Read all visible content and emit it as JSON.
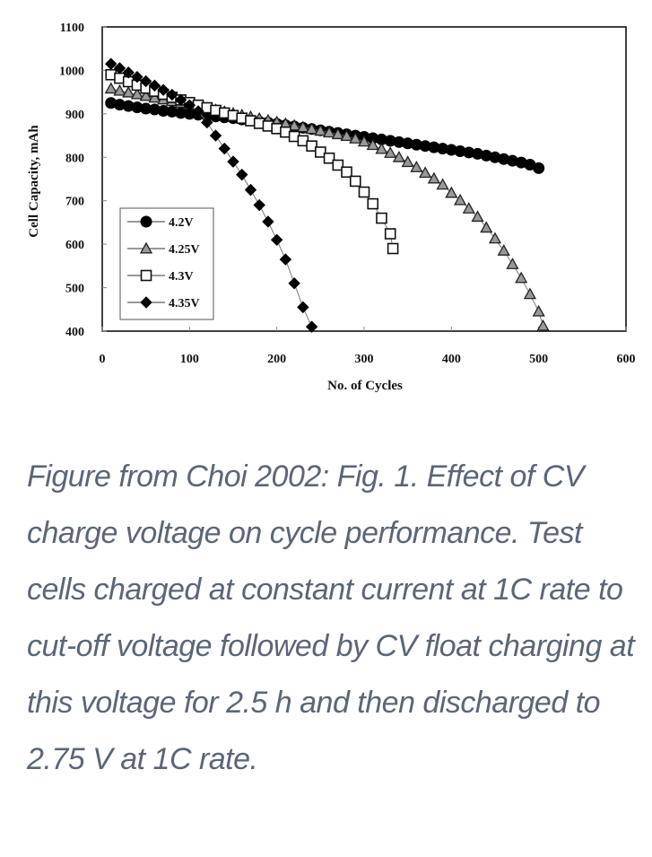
{
  "chart_data": {
    "type": "line",
    "title": "",
    "xlabel": "No. of Cycles",
    "ylabel": "Cell Capacity, mAh",
    "xlim": [
      0,
      600
    ],
    "ylim": [
      400,
      1100
    ],
    "xticks": [
      "0",
      "100",
      "200",
      "300",
      "400",
      "500",
      "600"
    ],
    "yticks": [
      "400",
      "500",
      "600",
      "700",
      "800",
      "900",
      "1000",
      "1100"
    ],
    "grid": false,
    "legend_position": "bottom-left",
    "series": [
      {
        "name": "4.2V",
        "marker": "circle",
        "fill": "#000000",
        "points": [
          [
            10,
            925
          ],
          [
            20,
            921
          ],
          [
            30,
            918
          ],
          [
            40,
            915
          ],
          [
            50,
            912
          ],
          [
            60,
            910
          ],
          [
            70,
            907
          ],
          [
            80,
            905
          ],
          [
            90,
            902
          ],
          [
            100,
            900
          ],
          [
            110,
            898
          ],
          [
            120,
            896
          ],
          [
            130,
            894
          ],
          [
            140,
            892
          ],
          [
            150,
            890
          ],
          [
            160,
            887
          ],
          [
            170,
            885
          ],
          [
            180,
            882
          ],
          [
            190,
            880
          ],
          [
            200,
            877
          ],
          [
            210,
            874
          ],
          [
            220,
            871
          ],
          [
            230,
            868
          ],
          [
            240,
            865
          ],
          [
            250,
            862
          ],
          [
            260,
            859
          ],
          [
            270,
            856
          ],
          [
            280,
            853
          ],
          [
            290,
            850
          ],
          [
            300,
            847
          ],
          [
            310,
            844
          ],
          [
            320,
            841
          ],
          [
            330,
            838
          ],
          [
            340,
            835
          ],
          [
            350,
            832
          ],
          [
            360,
            829
          ],
          [
            370,
            826
          ],
          [
            380,
            823
          ],
          [
            390,
            820
          ],
          [
            400,
            817
          ],
          [
            410,
            814
          ],
          [
            420,
            811
          ],
          [
            430,
            808
          ],
          [
            440,
            804
          ],
          [
            450,
            800
          ],
          [
            460,
            796
          ],
          [
            470,
            792
          ],
          [
            480,
            788
          ],
          [
            490,
            783
          ],
          [
            500,
            775
          ]
        ]
      },
      {
        "name": "4.25V",
        "marker": "triangle",
        "fill": "#999999",
        "points": [
          [
            10,
            958
          ],
          [
            20,
            953
          ],
          [
            30,
            949
          ],
          [
            40,
            945
          ],
          [
            50,
            941
          ],
          [
            60,
            937
          ],
          [
            70,
            933
          ],
          [
            80,
            929
          ],
          [
            90,
            925
          ],
          [
            100,
            921
          ],
          [
            110,
            917
          ],
          [
            120,
            913
          ],
          [
            130,
            909
          ],
          [
            140,
            905
          ],
          [
            150,
            901
          ],
          [
            160,
            897
          ],
          [
            170,
            893
          ],
          [
            180,
            889
          ],
          [
            190,
            885
          ],
          [
            200,
            881
          ],
          [
            210,
            877
          ],
          [
            220,
            873
          ],
          [
            230,
            869
          ],
          [
            240,
            865
          ],
          [
            250,
            861
          ],
          [
            260,
            857
          ],
          [
            270,
            853
          ],
          [
            280,
            849
          ],
          [
            290,
            843
          ],
          [
            300,
            836
          ],
          [
            310,
            828
          ],
          [
            320,
            819
          ],
          [
            330,
            810
          ],
          [
            340,
            800
          ],
          [
            350,
            789
          ],
          [
            360,
            777
          ],
          [
            370,
            764
          ],
          [
            380,
            751
          ],
          [
            390,
            737
          ],
          [
            400,
            718
          ],
          [
            410,
            701
          ],
          [
            420,
            682
          ],
          [
            430,
            663
          ],
          [
            440,
            638
          ],
          [
            450,
            613
          ],
          [
            460,
            585
          ],
          [
            470,
            554
          ],
          [
            480,
            522
          ],
          [
            490,
            485
          ],
          [
            500,
            445
          ],
          [
            505,
            412
          ]
        ]
      },
      {
        "name": "4.3V",
        "marker": "square",
        "fill": "#ffffff",
        "points": [
          [
            10,
            990
          ],
          [
            20,
            982
          ],
          [
            30,
            974
          ],
          [
            40,
            966
          ],
          [
            50,
            959
          ],
          [
            60,
            952
          ],
          [
            70,
            945
          ],
          [
            80,
            938
          ],
          [
            90,
            932
          ],
          [
            100,
            926
          ],
          [
            110,
            920
          ],
          [
            120,
            914
          ],
          [
            130,
            908
          ],
          [
            140,
            902
          ],
          [
            150,
            896
          ],
          [
            160,
            890
          ],
          [
            170,
            884
          ],
          [
            180,
            878
          ],
          [
            190,
            872
          ],
          [
            200,
            866
          ],
          [
            210,
            858
          ],
          [
            220,
            848
          ],
          [
            230,
            838
          ],
          [
            240,
            826
          ],
          [
            250,
            812
          ],
          [
            260,
            798
          ],
          [
            270,
            782
          ],
          [
            280,
            766
          ],
          [
            290,
            745
          ],
          [
            300,
            720
          ],
          [
            310,
            693
          ],
          [
            320,
            660
          ],
          [
            330,
            624
          ],
          [
            333,
            590
          ]
        ]
      },
      {
        "name": "4.35V",
        "marker": "diamond",
        "fill": "#000000",
        "points": [
          [
            10,
            1015
          ],
          [
            20,
            1005
          ],
          [
            30,
            995
          ],
          [
            40,
            985
          ],
          [
            50,
            975
          ],
          [
            60,
            965
          ],
          [
            70,
            955
          ],
          [
            80,
            944
          ],
          [
            90,
            932
          ],
          [
            100,
            920
          ],
          [
            110,
            906
          ],
          [
            120,
            880
          ],
          [
            130,
            850
          ],
          [
            140,
            820
          ],
          [
            150,
            790
          ],
          [
            160,
            760
          ],
          [
            170,
            725
          ],
          [
            180,
            690
          ],
          [
            190,
            652
          ],
          [
            200,
            610
          ],
          [
            210,
            565
          ],
          [
            220,
            510
          ],
          [
            230,
            455
          ],
          [
            240,
            410
          ]
        ]
      }
    ]
  },
  "caption": "Figure from Choi 2002: Fig. 1. Effect of CV charge voltage on cycle performance. Test cells charged at constant current at 1C rate to cut-off voltage followed by CV float charging at this voltage for 2.5 h and then discharged to 2.75 V at 1C rate."
}
